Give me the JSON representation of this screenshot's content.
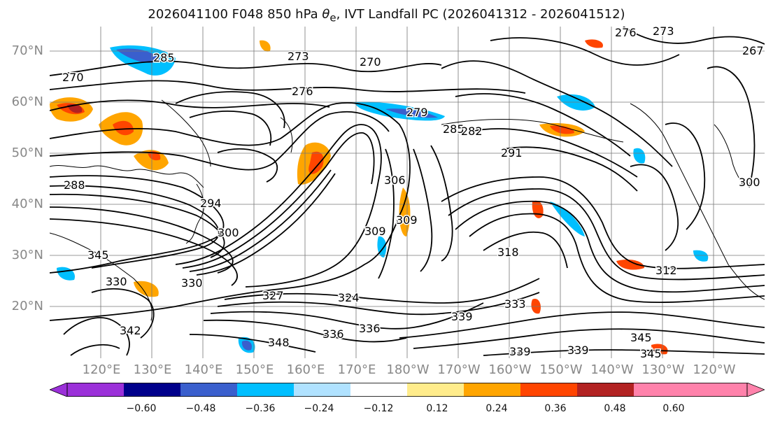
{
  "title": {
    "prefix": "2026041100 F048 850 hPa ",
    "theta": "θ",
    "sub": "e",
    "suffix": ", IVT Landfall PC (2026041312 - 2026041512)"
  },
  "lat_labels": [
    "70°N",
    "60°N",
    "50°N",
    "40°N",
    "30°N",
    "20°N"
  ],
  "lon_labels": [
    "120°E",
    "130°E",
    "140°E",
    "150°E",
    "160°E",
    "170°E",
    "180°W",
    "170°W",
    "160°W",
    "150°W",
    "140°W",
    "130°W",
    "120°W"
  ],
  "contour_labels": [
    "276",
    "273",
    "273",
    "270",
    "270",
    "276",
    "279",
    "285",
    "291",
    "288",
    "294",
    "300",
    "306",
    "309",
    "309",
    "300",
    "318",
    "312",
    "324",
    "327",
    "330",
    "330",
    "336",
    "336",
    "339",
    "333",
    "339",
    "339",
    "345",
    "348",
    "345",
    "345",
    "342",
    "267",
    "285",
    "282"
  ],
  "colorbar": {
    "ticks": [
      "−0.60",
      "−0.48",
      "−0.36",
      "−0.24",
      "−0.12",
      "0.12",
      "0.24",
      "0.36",
      "0.48",
      "0.60"
    ],
    "colors": [
      "#9b30d9",
      "#00008b",
      "#3a5fcd",
      "#00bfff",
      "#b0e2ff",
      "#ffffff",
      "#ffec8b",
      "#ffa500",
      "#ff4500",
      "#b22222",
      "#ff82ab",
      "#ff82ab"
    ],
    "neg_extend_color": "#9b30d9",
    "pos_extend_color": "#ff82ab"
  }
}
